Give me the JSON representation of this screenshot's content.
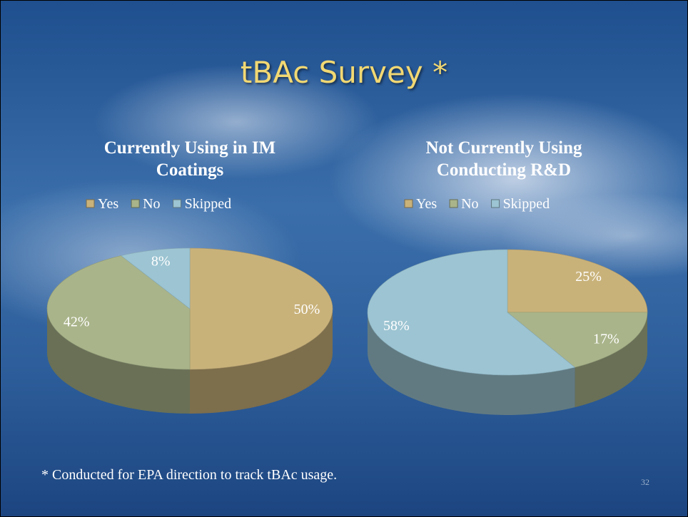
{
  "slide": {
    "title": "tBAc Survey *",
    "footnote": "* Conducted for EPA direction to track tBAc usage.",
    "page_number": "32"
  },
  "chart_data": [
    {
      "type": "pie",
      "title": "Currently Using in IM Coatings",
      "categories": [
        "Yes",
        "No",
        "Skipped"
      ],
      "values": [
        50,
        42,
        8
      ],
      "value_labels": [
        "50%",
        "42%",
        "8%"
      ],
      "colors": [
        "#c9b27a",
        "#a9b48a",
        "#9cc4d2"
      ],
      "legend": "top"
    },
    {
      "type": "pie",
      "title": "Not Currently Using Conducting R&D",
      "categories": [
        "Yes",
        "No",
        "Skipped"
      ],
      "values": [
        25,
        17,
        58
      ],
      "value_labels": [
        "25%",
        "17%",
        "58%"
      ],
      "colors": [
        "#c9b27a",
        "#a9b48a",
        "#9cc4d2"
      ],
      "legend": "top"
    }
  ]
}
